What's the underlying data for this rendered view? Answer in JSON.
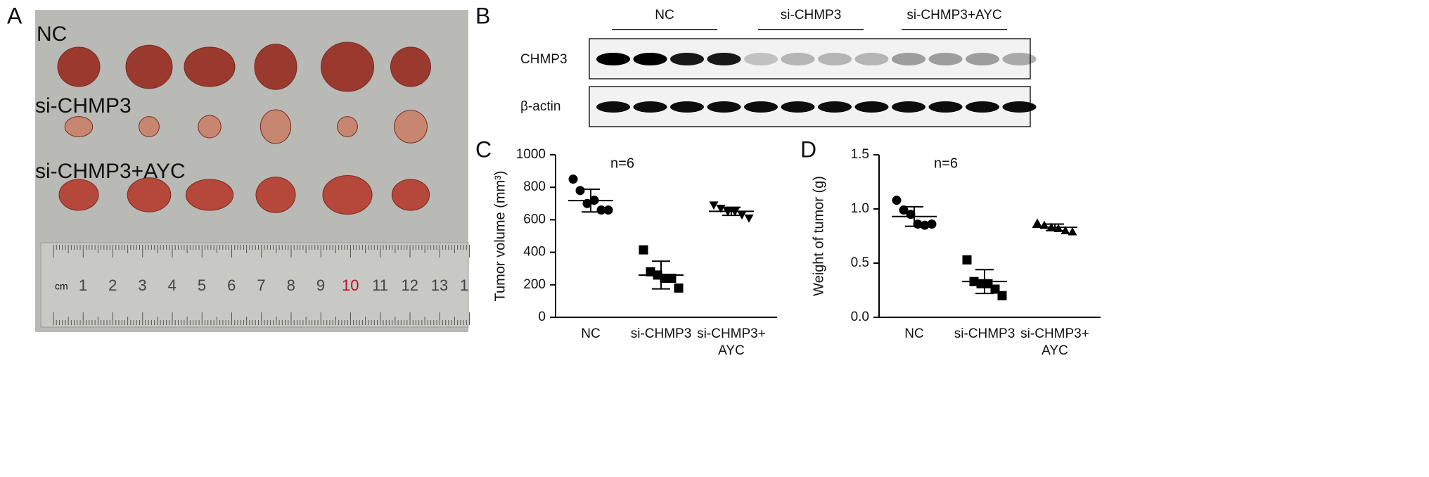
{
  "panels": {
    "a": "A",
    "b": "B",
    "c": "C",
    "d": "D"
  },
  "photo": {
    "row_labels": [
      "NC",
      "si-CHMP3",
      "si-CHMP3+AYC"
    ],
    "ruler_unit": "cm",
    "ruler_numbers": [
      "1",
      "2",
      "3",
      "4",
      "5",
      "6",
      "7",
      "8",
      "9",
      "10",
      "11",
      "12",
      "13",
      "1"
    ]
  },
  "blot": {
    "groups": [
      "NC",
      "si-CHMP3",
      "si-CHMP3+AYC"
    ],
    "rows": [
      "CHMP3",
      "β-actin"
    ]
  },
  "chart_data": [
    {
      "type": "scatter",
      "ylabel": "Tumor volume (mm³)",
      "annotation": "n=6",
      "categories": [
        "NC",
        "si-CHMP3",
        "si-CHMP3+AYC"
      ],
      "points": [
        [
          850,
          780,
          700,
          720,
          660,
          660
        ],
        [
          415,
          280,
          260,
          240,
          240,
          180
        ],
        [
          690,
          670,
          650,
          650,
          630,
          610
        ]
      ],
      "means": [
        718,
        260,
        652
      ],
      "sd": [
        70,
        85,
        25
      ],
      "markers": [
        "circle",
        "square",
        "triangle-down"
      ],
      "color": "#000000",
      "ylim": [
        0,
        1000
      ],
      "yticks": [
        0,
        200,
        400,
        600,
        800,
        1000
      ]
    },
    {
      "type": "scatter",
      "ylabel": "Weight of tumor (g)",
      "annotation": "n=6",
      "categories": [
        "NC",
        "si-CHMP3",
        "si-CHMP3+AYC"
      ],
      "points": [
        [
          1.08,
          0.99,
          0.95,
          0.86,
          0.85,
          0.86
        ],
        [
          0.53,
          0.33,
          0.31,
          0.31,
          0.26,
          0.2
        ],
        [
          0.87,
          0.85,
          0.83,
          0.82,
          0.8,
          0.79
        ]
      ],
      "means": [
        0.93,
        0.33,
        0.83
      ],
      "sd": [
        0.09,
        0.11,
        0.03
      ],
      "markers": [
        "circle",
        "square",
        "triangle-up"
      ],
      "color": "#000000",
      "ylim": [
        0,
        1.5
      ],
      "yticks": [
        {
          "value": 0,
          "label": "0.0"
        },
        0.5,
        {
          "value": 1,
          "label": "1.0"
        },
        1.5
      ]
    }
  ]
}
